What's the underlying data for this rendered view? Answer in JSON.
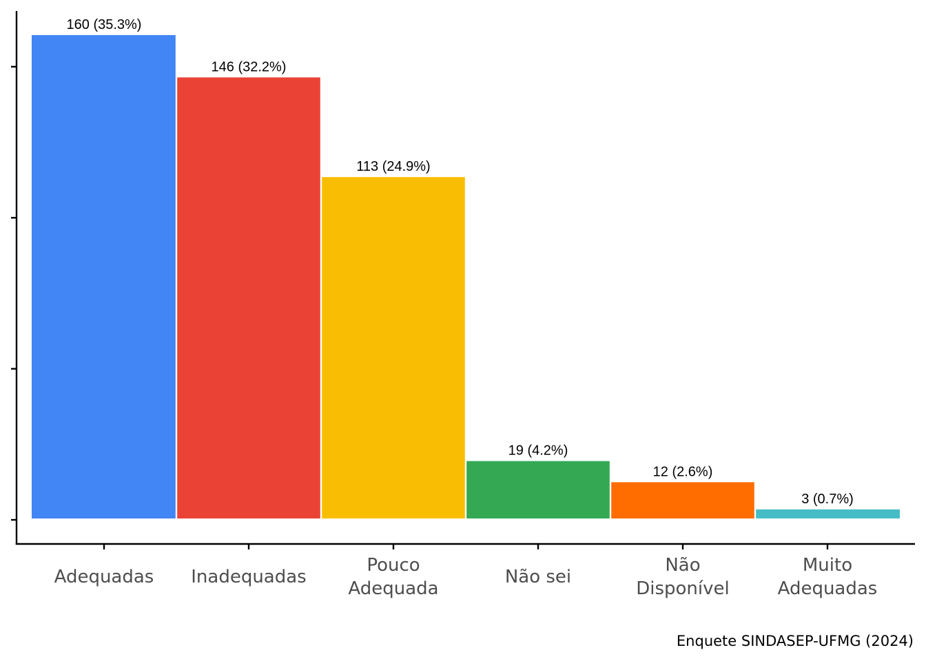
{
  "chart_data": {
    "type": "bar",
    "categories": [
      [
        "Adequadas"
      ],
      [
        "Inadequadas"
      ],
      [
        "Pouco",
        "Adequada"
      ],
      [
        "Não sei"
      ],
      [
        "Não",
        "Disponível"
      ],
      [
        "Muito",
        "Adequadas"
      ]
    ],
    "values": [
      160,
      146,
      113,
      19,
      12,
      3
    ],
    "data_labels": [
      "160 (35.3%)",
      "146 (32.2%)",
      "113 (24.9%)",
      "19 (4.2%)",
      "12 (2.6%)",
      "3 (0.7%)"
    ],
    "colors": [
      "#4285F4",
      "#EA4335",
      "#F9BE03",
      "#34A853",
      "#FF6D00",
      "#46BDC6"
    ],
    "ylim": [
      0,
      175
    ],
    "grid": false,
    "legend": "none",
    "caption": "Enquete SINDASEP-UFMG (2024)"
  }
}
